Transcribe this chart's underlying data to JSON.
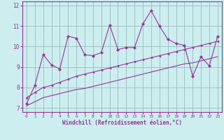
{
  "xlabel": "Windchill (Refroidissement éolien,°C)",
  "x_values": [
    0,
    1,
    2,
    3,
    4,
    5,
    6,
    7,
    8,
    9,
    10,
    11,
    12,
    13,
    14,
    15,
    16,
    17,
    18,
    19,
    20,
    21,
    22,
    23
  ],
  "line1": [
    7.2,
    8.1,
    9.6,
    9.1,
    8.9,
    10.5,
    10.4,
    9.6,
    9.55,
    9.7,
    11.05,
    9.85,
    9.95,
    9.95,
    11.1,
    11.75,
    11.0,
    10.35,
    10.15,
    10.05,
    8.55,
    9.5,
    9.05,
    10.5
  ],
  "line2": [
    7.5,
    7.75,
    8.0,
    8.1,
    8.25,
    8.4,
    8.55,
    8.65,
    8.75,
    8.85,
    8.95,
    9.05,
    9.15,
    9.25,
    9.35,
    9.45,
    9.55,
    9.65,
    9.75,
    9.85,
    9.95,
    10.05,
    10.15,
    10.25
  ],
  "line3": [
    7.1,
    7.3,
    7.5,
    7.6,
    7.7,
    7.8,
    7.9,
    7.95,
    8.05,
    8.15,
    8.25,
    8.35,
    8.45,
    8.55,
    8.65,
    8.75,
    8.85,
    8.95,
    9.05,
    9.15,
    9.2,
    9.3,
    9.4,
    9.5
  ],
  "line_color": "#993399",
  "bg_color": "#cceeee",
  "grid_color": "#99bbbb",
  "ylim": [
    6.8,
    12.2
  ],
  "xlim": [
    -0.5,
    23.5
  ],
  "yticks": [
    7,
    8,
    9,
    10,
    11,
    12
  ],
  "xticks": [
    0,
    1,
    2,
    3,
    4,
    5,
    6,
    7,
    8,
    9,
    10,
    11,
    12,
    13,
    14,
    15,
    16,
    17,
    18,
    19,
    20,
    21,
    22,
    23
  ]
}
